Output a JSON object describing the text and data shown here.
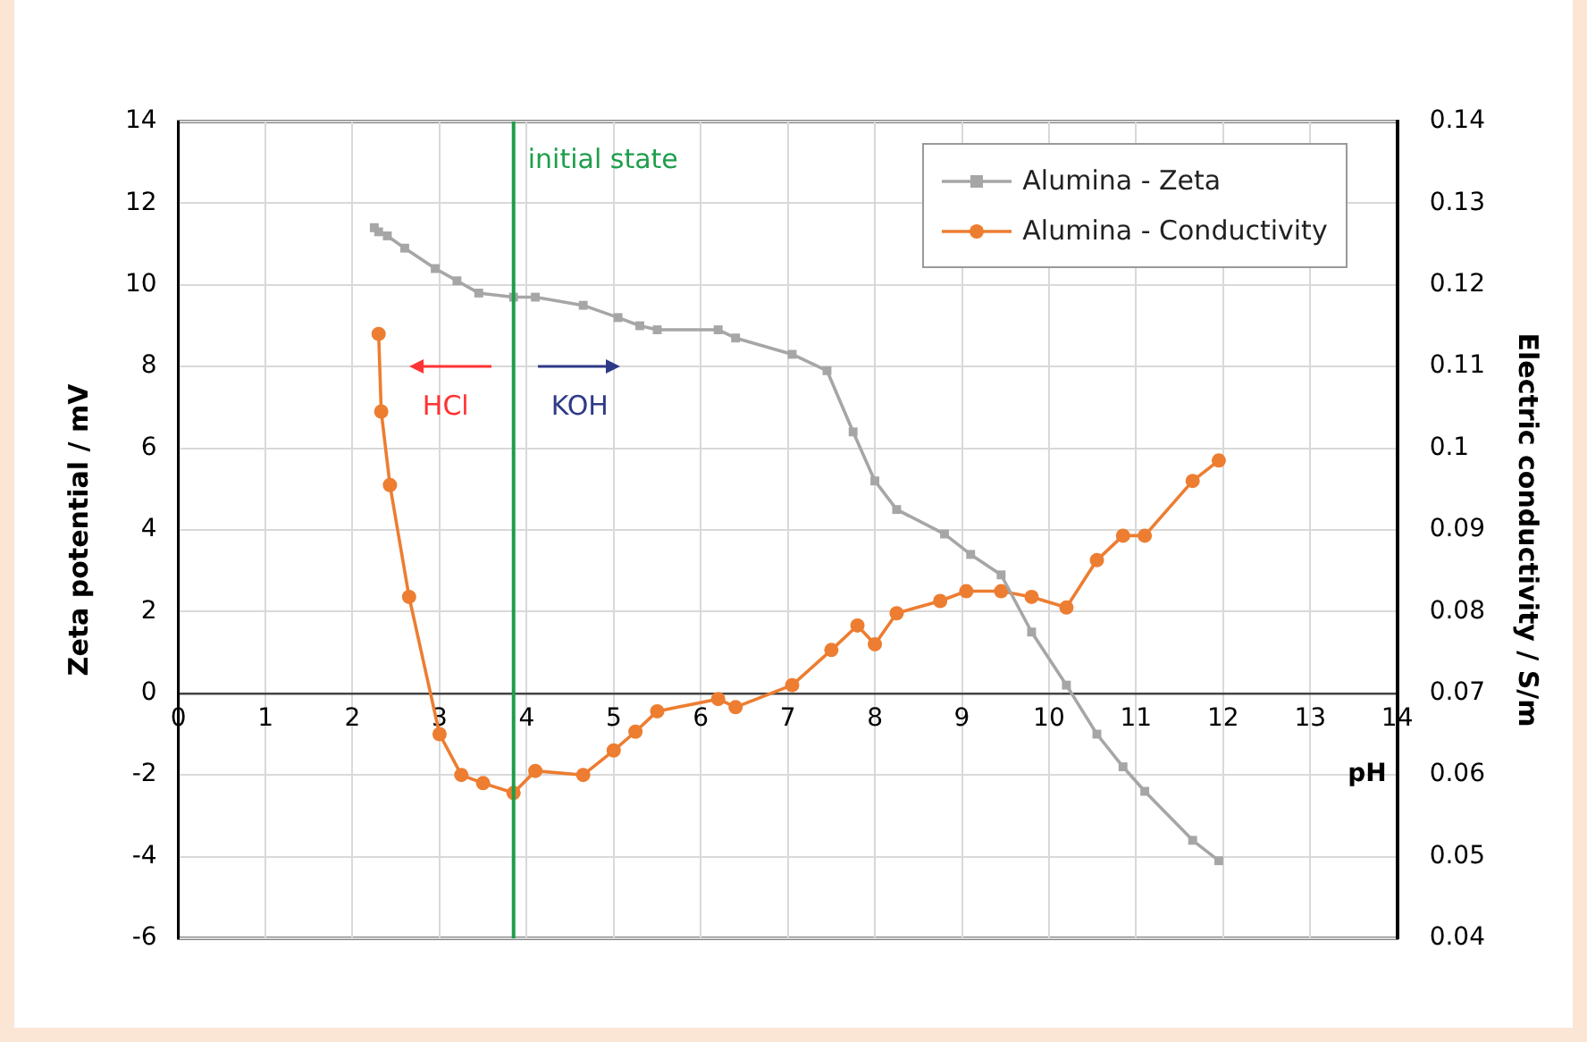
{
  "chart_data": {
    "type": "line",
    "xlabel": "pH",
    "ylabel": "Zeta potential / mV",
    "y2label": "Electric conductivity / S/m",
    "xlim": [
      0,
      14
    ],
    "xticks": [
      0,
      1,
      2,
      3,
      4,
      5,
      6,
      7,
      8,
      9,
      10,
      11,
      12,
      13,
      14
    ],
    "ylim": [
      -6,
      14
    ],
    "yticks": [
      -6,
      -4,
      -2,
      0,
      2,
      4,
      6,
      8,
      10,
      12,
      14
    ],
    "y2lim": [
      0.04,
      0.14
    ],
    "y2ticks": [
      0.04,
      0.05,
      0.06,
      0.07,
      0.08,
      0.09,
      0.1,
      0.11,
      0.12,
      0.13,
      0.14
    ],
    "grid": true,
    "legend": "top right",
    "series": [
      {
        "name": "Alumina - Zeta",
        "color": "#a6a6a6",
        "marker": "square",
        "x": [
          2.25,
          2.3,
          2.4,
          2.6,
          2.95,
          3.2,
          3.45,
          3.85,
          4.1,
          4.65,
          5.05,
          5.3,
          5.5,
          6.2,
          6.4,
          7.05,
          7.45,
          7.75,
          8.0,
          8.25,
          8.8,
          9.1,
          9.45,
          9.8,
          10.2,
          10.55,
          10.85,
          11.1,
          11.65,
          11.95
        ],
        "values": [
          11.4,
          11.3,
          11.2,
          10.9,
          10.4,
          10.1,
          9.8,
          9.7,
          9.7,
          9.5,
          9.2,
          9.0,
          8.9,
          8.9,
          8.7,
          8.3,
          7.9,
          6.4,
          5.2,
          4.5,
          3.9,
          3.4,
          2.9,
          1.5,
          0.2,
          -1.0,
          -1.8,
          -2.4,
          -3.6,
          -4.1
        ]
      },
      {
        "name": "Alumina - Conductivity",
        "color": "#ed7d31",
        "marker": "circle",
        "axis": "y2",
        "x": [
          2.3,
          2.33,
          2.43,
          2.65,
          3.0,
          3.25,
          3.5,
          3.85,
          4.1,
          4.65,
          5.0,
          5.25,
          5.5,
          6.2,
          6.4,
          7.05,
          7.5,
          7.8,
          8.0,
          8.25,
          8.75,
          9.05,
          9.45,
          9.8,
          10.2,
          10.55,
          10.85,
          11.1,
          11.65,
          11.95
        ],
        "values": [
          0.114,
          0.1045,
          0.0955,
          0.0818,
          0.065,
          0.06,
          0.059,
          0.0578,
          0.0605,
          0.06,
          0.063,
          0.0653,
          0.0678,
          0.0693,
          0.0683,
          0.071,
          0.0753,
          0.0783,
          0.076,
          0.0798,
          0.0813,
          0.0825,
          0.0825,
          0.0818,
          0.0805,
          0.0863,
          0.0893,
          0.0893,
          0.096,
          0.0985
        ]
      }
    ],
    "ref_lines": [
      {
        "axis": "x",
        "value": 3.85,
        "label": "initial state",
        "color": "#1e9e4a"
      }
    ],
    "annotations": [
      "HCl",
      "KOH"
    ]
  }
}
